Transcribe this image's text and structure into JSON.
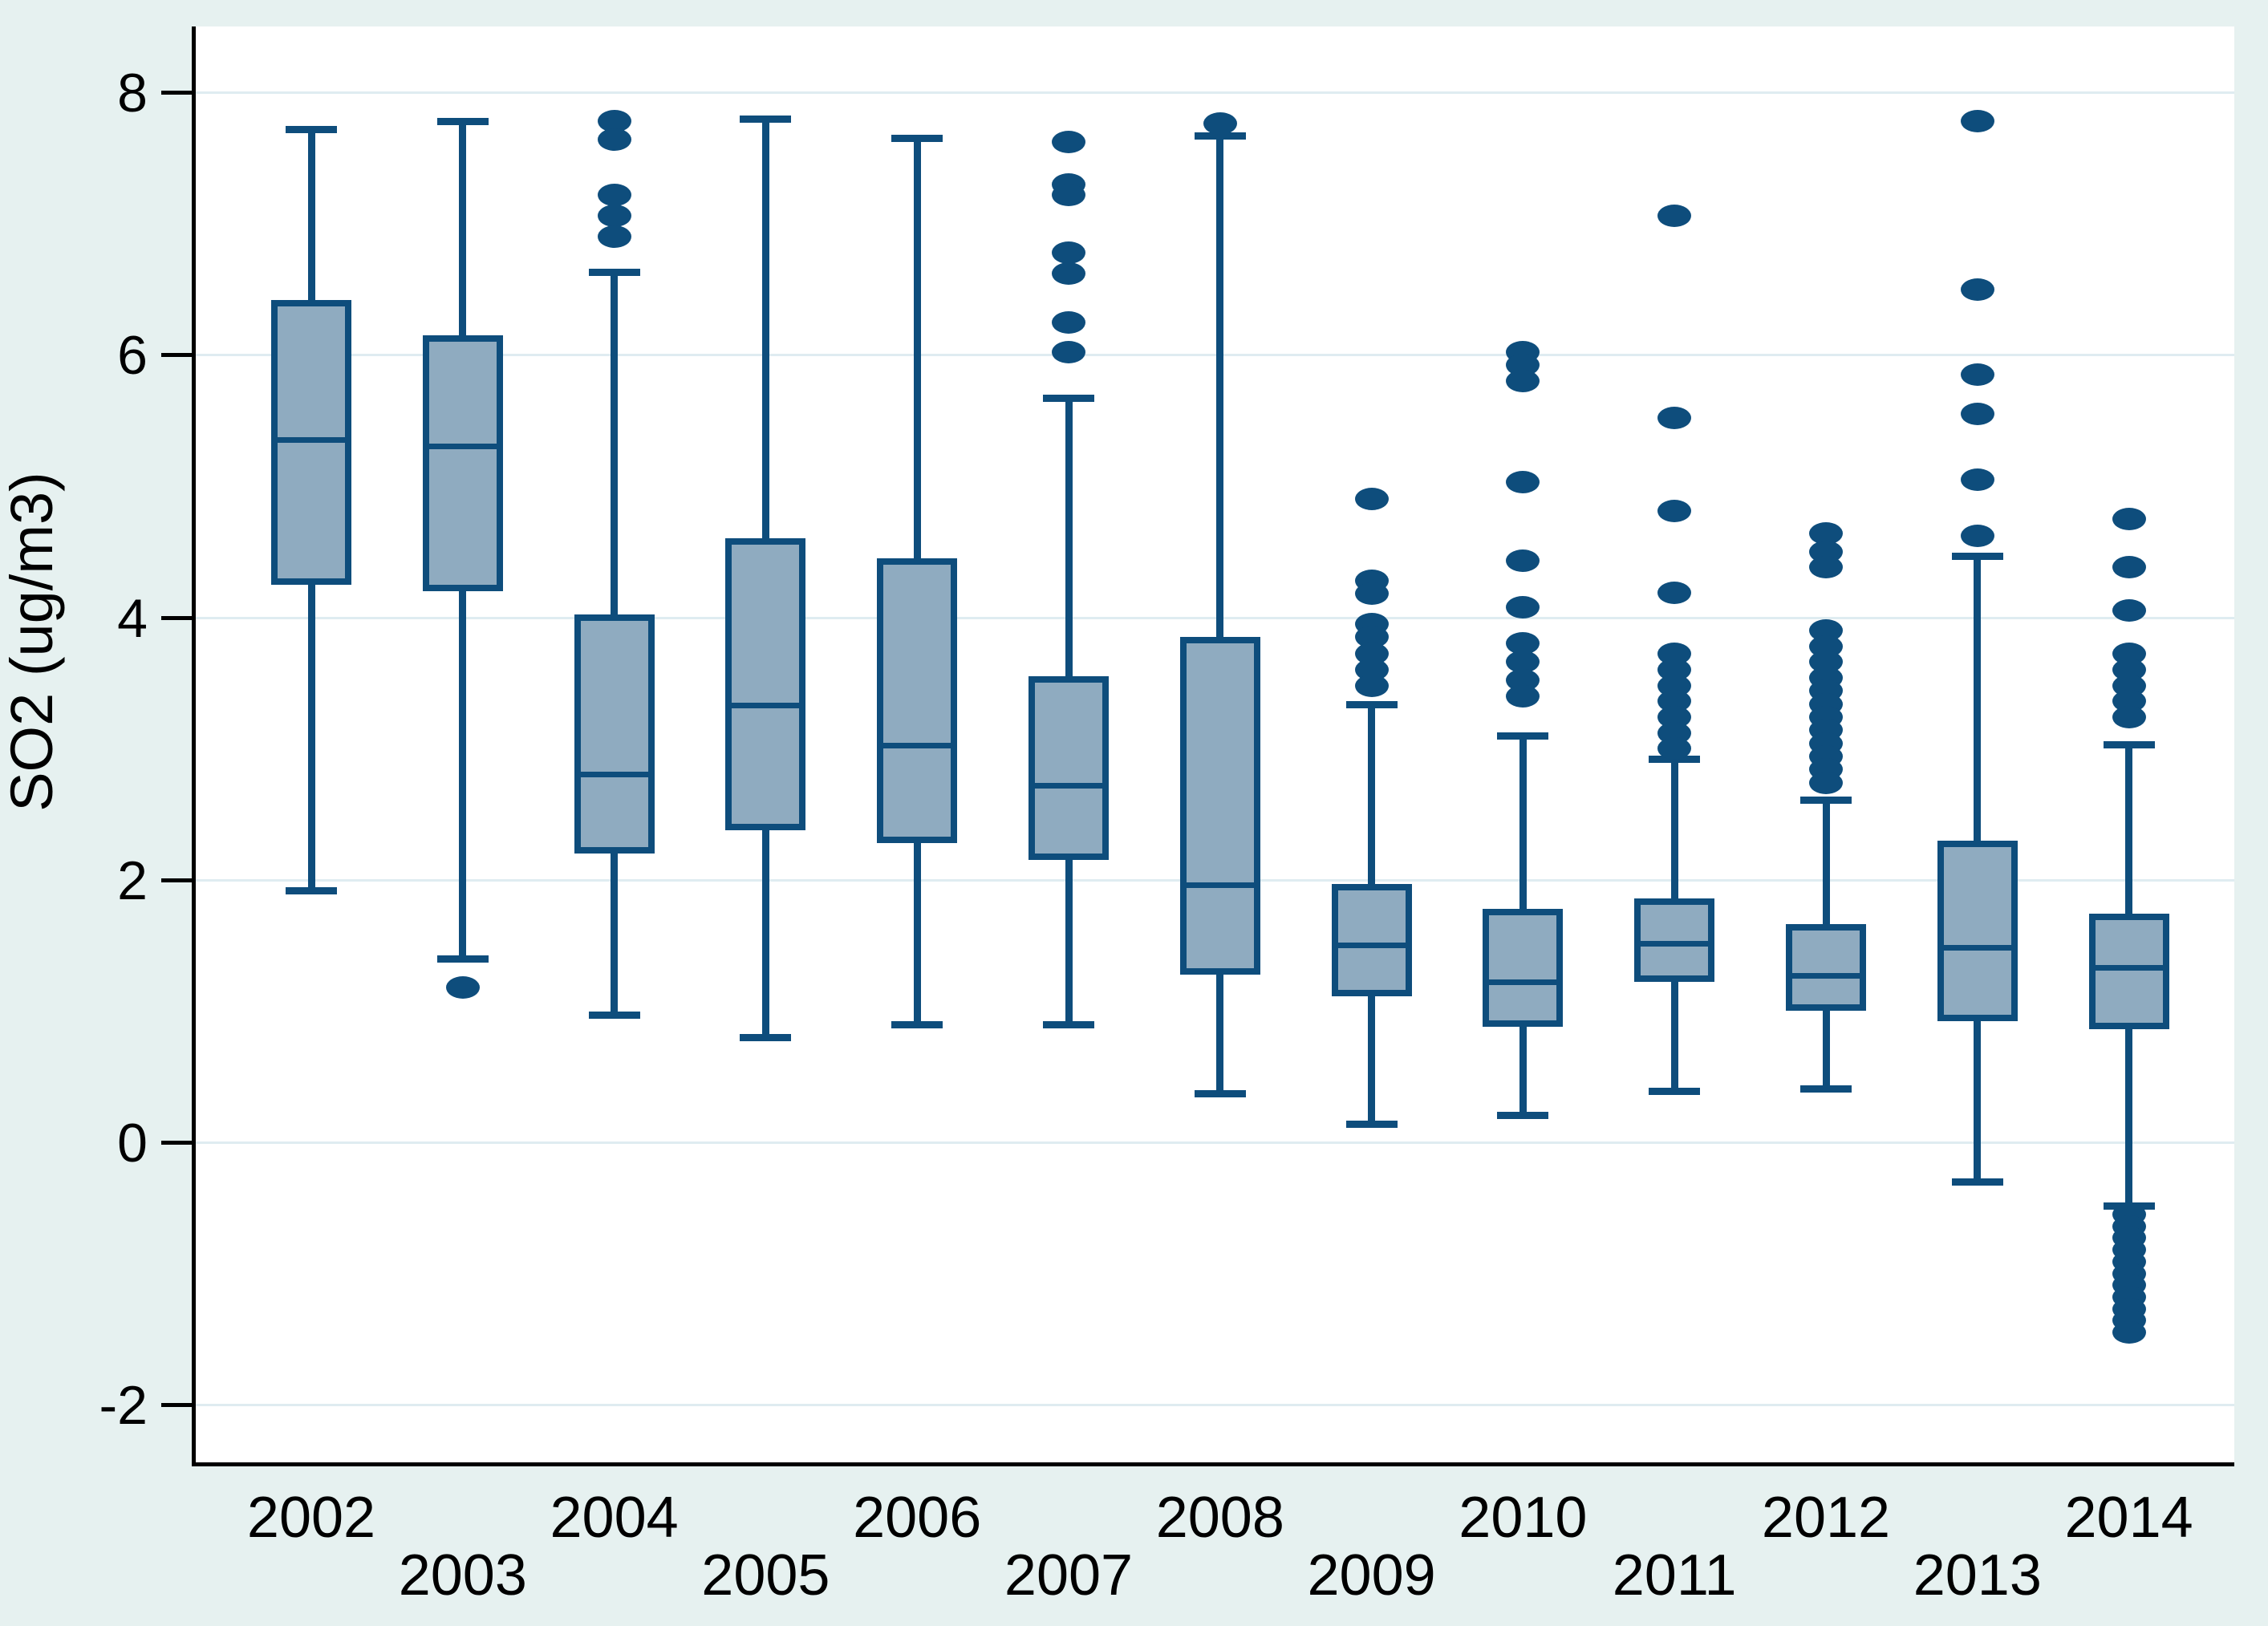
{
  "colors": {
    "background": "#e6f1f0",
    "plot_background": "#ffffff",
    "gridline": "#dfecf1",
    "axis": "#000000",
    "box_fill": "#8fabc0",
    "box_border": "#0e4d7c",
    "outlier": "#0e4d7c",
    "text": "#000000"
  },
  "chart_data": {
    "type": "box",
    "title": "",
    "xlabel": "",
    "ylabel": "SO2 (ug/m3)",
    "ylim": [
      -2.45,
      8.55
    ],
    "yticks": [
      8,
      6,
      4,
      2,
      0,
      -2
    ],
    "grid": "horizontal",
    "legend": "none",
    "categories": [
      2002,
      2003,
      2004,
      2005,
      2006,
      2007,
      2008,
      2009,
      2010,
      2011,
      2012,
      2013,
      2014
    ],
    "x_label_stagger": "even years on upper row, odd years on lower row",
    "series": [
      {
        "year": 2002,
        "whisker_low": 1.92,
        "q1": 4.25,
        "median": 5.35,
        "q3": 6.42,
        "whisker_high": 7.72,
        "outliers": []
      },
      {
        "year": 2003,
        "whisker_low": 1.4,
        "q1": 4.2,
        "median": 5.3,
        "q3": 6.15,
        "whisker_high": 7.78,
        "outliers": [
          1.18
        ]
      },
      {
        "year": 2004,
        "whisker_low": 0.97,
        "q1": 2.2,
        "median": 2.8,
        "q3": 4.02,
        "whisker_high": 6.63,
        "outliers": [
          7.78,
          7.64,
          7.22,
          7.06,
          6.9
        ]
      },
      {
        "year": 2005,
        "whisker_low": 0.8,
        "q1": 2.38,
        "median": 3.33,
        "q3": 4.6,
        "whisker_high": 7.8,
        "outliers": []
      },
      {
        "year": 2006,
        "whisker_low": 0.9,
        "q1": 2.28,
        "median": 3.02,
        "q3": 4.45,
        "whisker_high": 7.65,
        "outliers": []
      },
      {
        "year": 2007,
        "whisker_low": 0.9,
        "q1": 2.15,
        "median": 2.72,
        "q3": 3.55,
        "whisker_high": 5.67,
        "outliers": [
          7.62,
          7.3,
          7.22,
          6.78,
          6.62,
          6.25,
          6.02
        ]
      },
      {
        "year": 2008,
        "whisker_low": 0.37,
        "q1": 1.28,
        "median": 1.96,
        "q3": 3.85,
        "whisker_high": 7.67,
        "outliers": [
          7.76
        ]
      },
      {
        "year": 2009,
        "whisker_low": 0.14,
        "q1": 1.11,
        "median": 1.5,
        "q3": 1.97,
        "whisker_high": 3.34,
        "outliers": [
          4.9,
          4.28,
          4.18,
          3.95,
          3.85,
          3.72,
          3.6,
          3.48
        ]
      },
      {
        "year": 2010,
        "whisker_low": 0.21,
        "q1": 0.88,
        "median": 1.22,
        "q3": 1.78,
        "whisker_high": 3.1,
        "outliers": [
          6.02,
          5.92,
          5.8,
          5.03,
          4.43,
          4.08,
          3.8,
          3.66,
          3.52,
          3.4
        ]
      },
      {
        "year": 2011,
        "whisker_low": 0.39,
        "q1": 1.22,
        "median": 1.51,
        "q3": 1.86,
        "whisker_high": 2.92,
        "outliers": [
          7.06,
          5.52,
          4.81,
          4.19,
          3.72,
          3.6,
          3.48,
          3.36,
          3.24,
          3.12,
          3.0
        ]
      },
      {
        "year": 2012,
        "whisker_low": 0.41,
        "q1": 1.0,
        "median": 1.27,
        "q3": 1.66,
        "whisker_high": 2.61,
        "outliers": [
          4.64,
          4.5,
          4.38,
          3.9,
          3.78,
          3.66,
          3.54,
          3.44,
          3.34,
          3.24,
          3.14,
          3.04,
          2.94,
          2.84,
          2.74
        ]
      },
      {
        "year": 2013,
        "whisker_low": -0.3,
        "q1": 0.92,
        "median": 1.48,
        "q3": 2.3,
        "whisker_high": 4.47,
        "outliers": [
          7.78,
          6.5,
          5.85,
          5.55,
          5.05,
          4.62
        ]
      },
      {
        "year": 2014,
        "whisker_low": -0.48,
        "q1": 0.86,
        "median": 1.33,
        "q3": 1.74,
        "whisker_high": 3.03,
        "outliers": [
          4.75,
          4.38,
          4.05,
          3.72,
          3.6,
          3.48,
          3.36,
          3.24,
          -0.55,
          -0.64,
          -0.73,
          -0.82,
          -0.91,
          -1.0,
          -1.09,
          -1.18,
          -1.27,
          -1.36,
          -1.45
        ]
      }
    ]
  }
}
